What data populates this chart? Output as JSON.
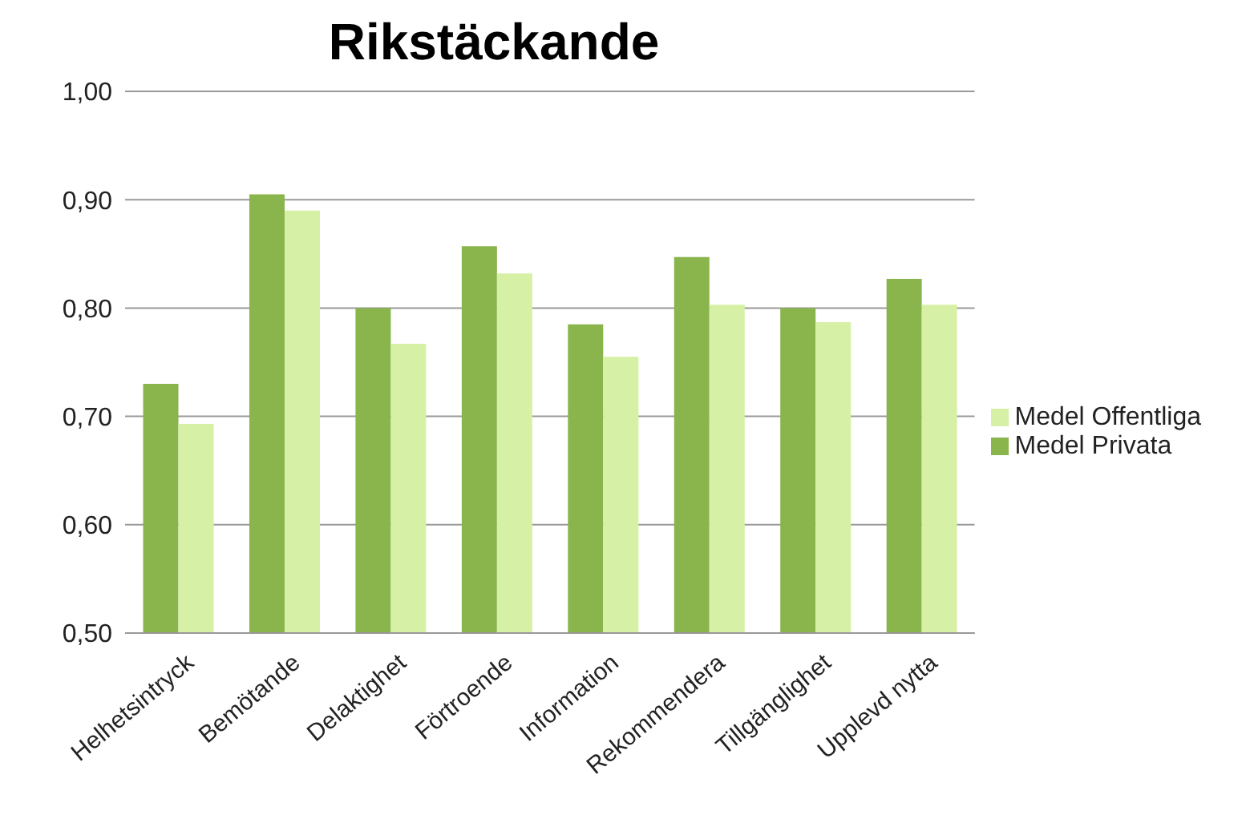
{
  "chart_data": {
    "type": "bar",
    "title": "Rikstäckande",
    "categories": [
      "Helhetsintryck",
      "Bemötande",
      "Delaktighet",
      "Förtroende",
      "Information",
      "Rekommendera",
      "Tillgänglighet",
      "Upplevd nytta"
    ],
    "series": [
      {
        "name": "Medel Privata",
        "color": "#8ab44c",
        "values": [
          0.73,
          0.905,
          0.8,
          0.857,
          0.785,
          0.847,
          0.8,
          0.827
        ]
      },
      {
        "name": "Medel Offentliga",
        "color": "#d6f0a6",
        "values": [
          0.693,
          0.89,
          0.767,
          0.832,
          0.755,
          0.803,
          0.787,
          0.803
        ]
      }
    ],
    "ylim": [
      0.5,
      1.0
    ],
    "yticks": [
      {
        "value": 0.5,
        "label": "0,50"
      },
      {
        "value": 0.6,
        "label": "0,60"
      },
      {
        "value": 0.7,
        "label": "0,70"
      },
      {
        "value": 0.8,
        "label": "0,80"
      },
      {
        "value": 0.9,
        "label": "0,90"
      },
      {
        "value": 1.0,
        "label": "1,00"
      }
    ],
    "grid": "y",
    "legend": "right"
  }
}
